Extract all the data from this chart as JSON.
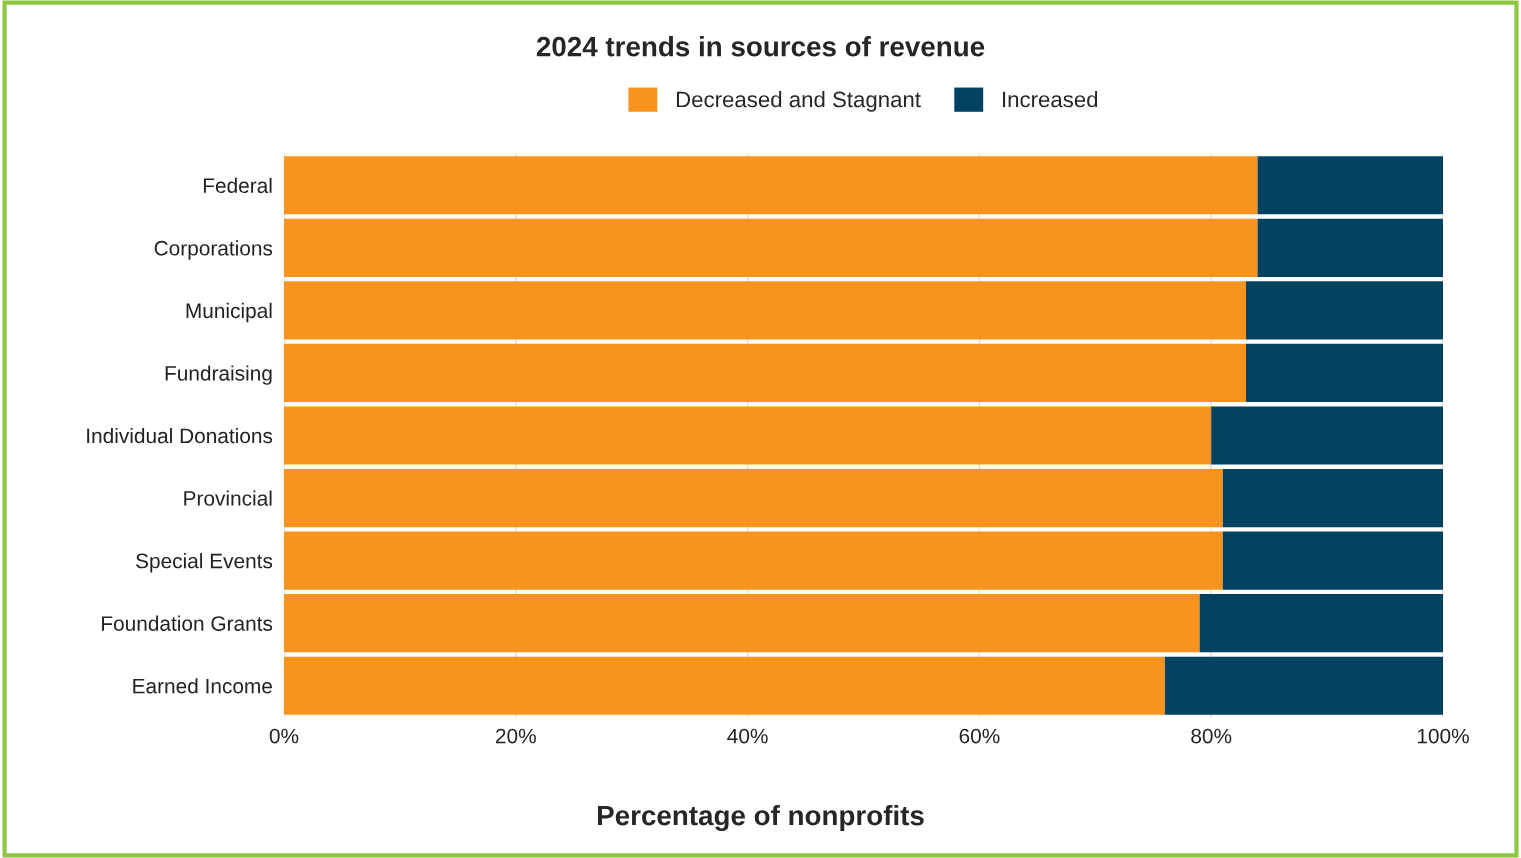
{
  "chart_data": {
    "type": "bar",
    "orientation": "horizontal",
    "stacked": true,
    "title": "2024 trends in sources of revenue",
    "xlabel": "Percentage of nonprofits",
    "categories": [
      "Federal",
      "Corporations",
      "Municipal",
      "Fundraising",
      "Individual Donations",
      "Provincial",
      "Special Events",
      "Foundation Grants",
      "Earned Income"
    ],
    "series": [
      {
        "name": "Decreased and Stagnant",
        "color": "#f7931e",
        "values": [
          84,
          84,
          83,
          83,
          80,
          81,
          81,
          79,
          76
        ]
      },
      {
        "name": "Increased",
        "color": "#004260",
        "values": [
          16,
          16,
          17,
          17,
          20,
          19,
          19,
          21,
          24
        ]
      }
    ],
    "xlim": [
      0,
      100
    ],
    "xticks": [
      {
        "value": 0,
        "label": "0%"
      },
      {
        "value": 20,
        "label": "20%"
      },
      {
        "value": 40,
        "label": "40%"
      },
      {
        "value": 60,
        "label": "60%"
      },
      {
        "value": 80,
        "label": "80%"
      },
      {
        "value": 100,
        "label": "100%"
      }
    ],
    "grid": "x",
    "legend": "top"
  }
}
